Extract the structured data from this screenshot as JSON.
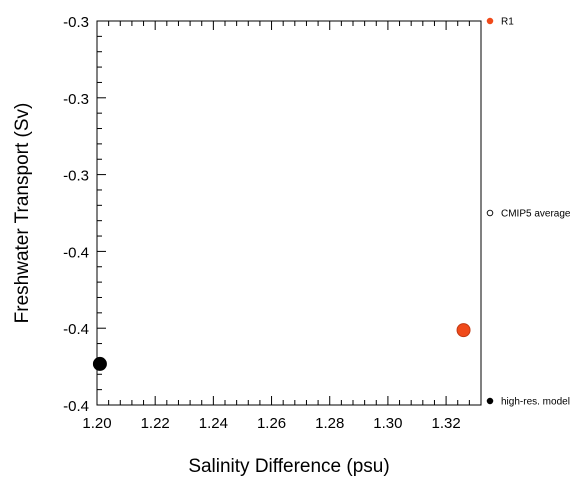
{
  "chart_data": {
    "type": "scatter",
    "title": "",
    "xlabel": "Salinity Difference (psu)",
    "ylabel": "Freshwater Transport (Sv)",
    "xlim": [
      1.2,
      1.332
    ],
    "ylim": [
      -0.4,
      -0.3
    ],
    "x_ticks": [
      1.2,
      1.22,
      1.24,
      1.26,
      1.28,
      1.3,
      1.32
    ],
    "x_tick_labels": [
      "1.20",
      "1.22",
      "1.24",
      "1.26",
      "1.28",
      "1.30",
      "1.32"
    ],
    "y_ticks": [
      -0.3,
      -0.32,
      -0.34,
      -0.36,
      -0.38,
      -0.4
    ],
    "y_tick_labels": [
      "-0.3",
      "-0.3",
      "-0.3",
      "-0.4",
      "-0.4",
      "-0.4"
    ],
    "grid": false,
    "legend_position": "right",
    "series": [
      {
        "name": "R1",
        "color": "#f04a1a",
        "marker": "filled-circle",
        "points": [
          {
            "x": 1.326,
            "y": -0.3805
          }
        ]
      },
      {
        "name": "CMIP5 average",
        "color": "#000000",
        "marker": "open-circle",
        "points": []
      },
      {
        "name": "high-res. model",
        "color": "#000000",
        "marker": "filled-circle",
        "points": [
          {
            "x": 1.201,
            "y": -0.3893
          }
        ]
      }
    ]
  }
}
